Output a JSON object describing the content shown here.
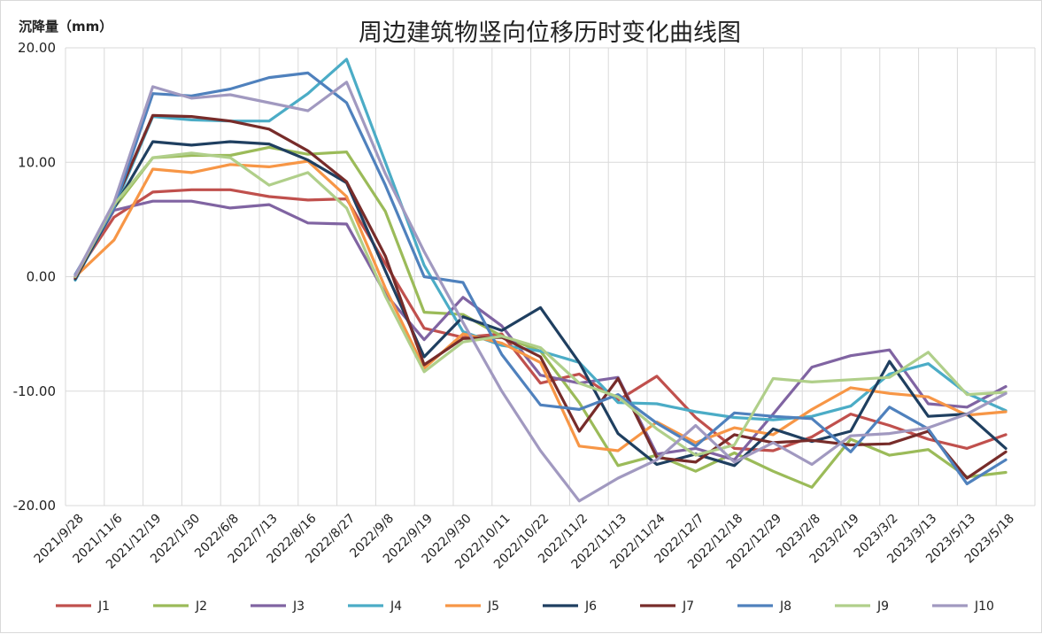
{
  "chart_data": {
    "type": "line",
    "title": "周边建筑物竖向位移历时变化曲线图",
    "ylabel": "沉降量（mm）",
    "xlabel": "",
    "ylim": [
      -20,
      20
    ],
    "yticks": [
      "20.00",
      "10.00",
      "0.00",
      "-10.00",
      "-20.00"
    ],
    "ytick_values": [
      20,
      10,
      0,
      -10,
      -20
    ],
    "grid": true,
    "legend_position": "bottom",
    "categories": [
      "2021/9/28",
      "2021/11/6",
      "2021/12/19",
      "2022/1/30",
      "2022/6/8",
      "2022/7/13",
      "2022/8/16",
      "2022/8/27",
      "2022/9/8",
      "2022/9/19",
      "2022/9/30",
      "2022/10/11",
      "2022/10/22",
      "2022/11/2",
      "2022/11/13",
      "2022/11/24",
      "2022/12/7",
      "2022/12/18",
      "2022/12/29",
      "2023/2/8",
      "2023/2/19",
      "2023/3/2",
      "2023/3/13",
      "2023/5/13",
      "2023/5/18"
    ],
    "x": [
      0,
      1,
      2,
      3,
      4,
      5,
      6,
      7,
      8,
      9,
      10,
      11,
      12,
      13,
      14,
      15,
      16,
      17,
      18,
      19,
      20,
      21,
      22,
      23,
      24,
      25,
      26,
      27,
      28,
      29,
      30,
      31,
      32,
      33,
      34,
      35,
      36,
      37,
      38,
      39,
      40,
      41,
      42,
      43,
      44,
      45,
      46,
      47,
      48,
      49
    ],
    "series": [
      {
        "name": "J1",
        "color": "#C0504D",
        "values": [
          0.1,
          null,
          5.2,
          null,
          7.4,
          null,
          7.6,
          null,
          7.6,
          null,
          7.0,
          null,
          6.7,
          null,
          6.8,
          null,
          null,
          null,
          -4.5,
          null,
          -5.3,
          null,
          -5.0,
          null,
          -9.3,
          null,
          -8.5,
          null,
          -10.8,
          null,
          -8.7,
          null,
          -12.3,
          null,
          -15.0,
          null,
          -15.2,
          null,
          -14.0,
          null,
          -12.0,
          null,
          -13.0,
          null,
          -14.2,
          null,
          -15.0,
          null,
          -13.8,
          null
        ]
      },
      {
        "name": "J2",
        "color": "#9BBB59",
        "values": [
          0.0,
          null,
          6.0,
          null,
          10.4,
          null,
          10.6,
          null,
          10.6,
          null,
          11.3,
          null,
          10.7,
          null,
          10.9,
          null,
          5.7,
          null,
          -3.1,
          null,
          -3.3,
          null,
          -5.2,
          null,
          -6.5,
          null,
          -11.0,
          null,
          -16.5,
          null,
          -15.6,
          null,
          -17.0,
          null,
          -15.4,
          null,
          -17.0,
          null,
          -18.4,
          null,
          -14.2,
          null,
          -15.6,
          null,
          -15.1,
          null,
          -17.5,
          null,
          -17.1,
          null
        ]
      },
      {
        "name": "J3",
        "color": "#8064A2",
        "values": [
          0.0,
          null,
          5.8,
          null,
          6.6,
          null,
          6.6,
          null,
          6.0,
          null,
          6.3,
          null,
          4.7,
          null,
          4.6,
          null,
          -1.5,
          null,
          -5.5,
          null,
          -1.8,
          null,
          -4.3,
          null,
          -8.6,
          null,
          -9.3,
          null,
          -8.8,
          null,
          -15.5,
          null,
          -15.0,
          null,
          -16.0,
          null,
          -12.0,
          null,
          -7.9,
          null,
          -6.9,
          null,
          -6.4,
          null,
          -11.1,
          null,
          -11.4,
          null,
          -9.6,
          null
        ]
      },
      {
        "name": "J4",
        "color": "#4BACC6",
        "values": [
          -0.3,
          null,
          6.0,
          null,
          14.0,
          null,
          13.7,
          null,
          13.6,
          null,
          13.6,
          null,
          16.0,
          null,
          19.0,
          null,
          10.0,
          null,
          1.0,
          null,
          -4.8,
          null,
          -6.0,
          null,
          -6.5,
          null,
          -7.5,
          null,
          -11.0,
          null,
          -11.1,
          null,
          -11.8,
          null,
          -12.3,
          null,
          -12.5,
          null,
          -12.2,
          null,
          -11.3,
          null,
          -8.5,
          null,
          -7.6,
          null,
          -10.2,
          null,
          -11.7,
          null
        ]
      },
      {
        "name": "J5",
        "color": "#F79646",
        "values": [
          0.0,
          null,
          3.2,
          null,
          9.4,
          null,
          9.1,
          null,
          9.8,
          null,
          9.6,
          null,
          10.1,
          null,
          7.0,
          null,
          -1.0,
          null,
          -8.0,
          null,
          -5.0,
          null,
          -5.8,
          null,
          -7.5,
          null,
          -14.8,
          null,
          -15.2,
          null,
          -12.7,
          null,
          -14.5,
          null,
          -13.2,
          null,
          -13.8,
          null,
          -11.6,
          null,
          -9.7,
          null,
          -10.2,
          null,
          -10.5,
          null,
          -12.1,
          null,
          -11.8,
          null
        ]
      },
      {
        "name": "J6",
        "color": "#1F3F60",
        "values": [
          -0.2,
          null,
          6.0,
          null,
          11.8,
          null,
          11.5,
          null,
          11.8,
          null,
          11.6,
          null,
          10.2,
          null,
          8.2,
          null,
          0.5,
          null,
          -7.0,
          null,
          -3.5,
          null,
          -4.7,
          null,
          -2.7,
          null,
          -7.5,
          null,
          -13.7,
          null,
          -16.4,
          null,
          -15.5,
          null,
          -16.5,
          null,
          -13.3,
          null,
          -14.4,
          null,
          -13.5,
          null,
          -7.4,
          null,
          -12.2,
          null,
          -12.0,
          null,
          -15.0,
          null
        ]
      },
      {
        "name": "J7",
        "color": "#772C2A",
        "values": [
          -0.1,
          null,
          6.3,
          null,
          14.1,
          null,
          14.0,
          null,
          13.6,
          null,
          12.9,
          null,
          11.0,
          null,
          8.3,
          null,
          1.8,
          null,
          -7.7,
          null,
          -5.4,
          null,
          -5.3,
          null,
          -7.0,
          null,
          -13.5,
          null,
          -8.9,
          null,
          -15.8,
          null,
          -16.2,
          null,
          -13.8,
          null,
          -14.5,
          null,
          -14.3,
          null,
          -14.7,
          null,
          -14.6,
          null,
          -13.5,
          null,
          -17.6,
          null,
          -15.3,
          null
        ]
      },
      {
        "name": "J8",
        "color": "#4F81BD",
        "values": [
          0.2,
          null,
          6.0,
          null,
          16.0,
          null,
          15.8,
          null,
          16.4,
          null,
          17.4,
          null,
          17.8,
          null,
          15.2,
          null,
          8.0,
          null,
          0.0,
          null,
          -0.5,
          null,
          -6.8,
          null,
          -11.2,
          null,
          -11.6,
          null,
          -10.3,
          null,
          -12.8,
          null,
          -14.8,
          null,
          -11.9,
          null,
          -12.2,
          null,
          -12.4,
          null,
          -15.3,
          null,
          -11.4,
          null,
          -13.3,
          null,
          -18.1,
          null,
          -16.0,
          null
        ]
      },
      {
        "name": "J9",
        "color": "#B0CF8A",
        "values": [
          0.0,
          null,
          6.3,
          null,
          10.4,
          null,
          10.8,
          null,
          10.4,
          null,
          8.0,
          null,
          9.1,
          null,
          6.0,
          null,
          -1.7,
          null,
          -8.3,
          null,
          -5.7,
          null,
          -5.2,
          null,
          -6.2,
          null,
          -9.3,
          null,
          -10.5,
          null,
          -13.3,
          null,
          -15.6,
          null,
          -14.7,
          null,
          -8.9,
          null,
          -9.2,
          null,
          -9.0,
          null,
          -8.8,
          null,
          -6.6,
          null,
          -10.3,
          null,
          -10.1,
          null
        ]
      },
      {
        "name": "J10",
        "color": "#A199C0",
        "values": [
          0.1,
          null,
          6.5,
          null,
          16.6,
          null,
          15.6,
          null,
          15.9,
          null,
          15.2,
          null,
          14.5,
          null,
          17.0,
          null,
          9.0,
          null,
          2.2,
          null,
          -4.0,
          null,
          -10.0,
          null,
          -15.2,
          null,
          -19.6,
          null,
          -17.6,
          null,
          -16.0,
          null,
          -13.0,
          null,
          -16.2,
          null,
          -14.5,
          null,
          -16.4,
          null,
          -13.9,
          null,
          -13.7,
          null,
          -13.2,
          null,
          -12.0,
          null,
          -10.2,
          null
        ]
      }
    ]
  }
}
